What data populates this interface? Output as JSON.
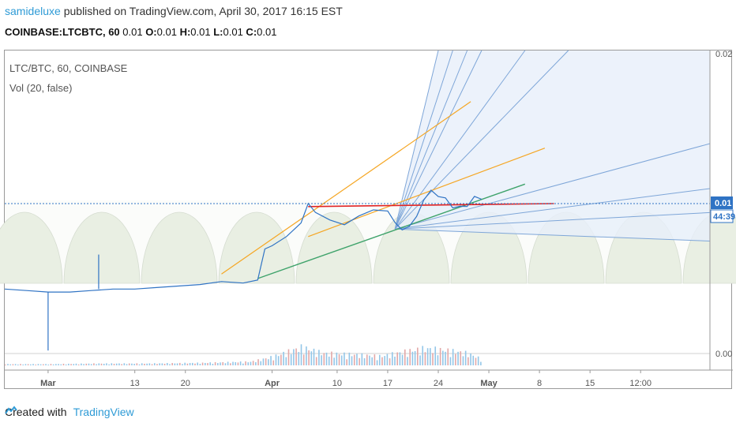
{
  "header": {
    "user": "samideluxe",
    "published": " published on TradingView.com, April 30, 2017 16:15 EST"
  },
  "symbol_bar": {
    "symbol": "COINBASE:LTCBTC, 60",
    "value": " 0.01",
    "o_label": " O:",
    "o_value": "0.01",
    "h_label": " H:",
    "h_value": "0.01",
    "l_label": " L:",
    "l_value": "0.01",
    "c_label": " C:",
    "c_value": "0.01"
  },
  "overlay": {
    "pair": "LTC/BTC, 60, COINBASE",
    "volume": "Vol (20, false)"
  },
  "footer": {
    "created_with": "Created with",
    "brand": "TradingView"
  },
  "colors": {
    "price_line": "#2f73c4",
    "trend_orange": "#f5a623",
    "trend_green": "#3fa36b",
    "level_red": "#e02424",
    "fan_lines": "#7ea6d8",
    "fan_fill": "#e7effa",
    "arcs_fill": "#e9efe3",
    "price_label_bg": "#2f73c4"
  },
  "chart_data": {
    "type": "line",
    "x_tick_labels": [
      "Mar",
      "13",
      "20",
      "Apr",
      "10",
      "17",
      "24",
      "May",
      "8",
      "15",
      "12:00"
    ],
    "y_tick_labels": [
      "0.02",
      "0.00"
    ],
    "current_price_label": "0.01",
    "countdown_label": "44:39",
    "series": [
      {
        "x": [
          "Feb 23",
          "Feb 26",
          "Mar 1",
          "Mar 4",
          "Mar 7",
          "Mar 10",
          "Mar 13",
          "Mar 16",
          "Mar 19",
          "Mar 22",
          "Mar 25",
          "Mar 28",
          "Mar 30",
          "Mar 31",
          "Apr 1",
          "Apr 3",
          "Apr 5",
          "Apr 6",
          "Apr 7",
          "Apr 9",
          "Apr 11",
          "Apr 13",
          "Apr 15",
          "Apr 17",
          "Apr 18",
          "Apr 19",
          "Apr 20",
          "Apr 21",
          "Apr 22",
          "Apr 23",
          "Apr 24",
          "Apr 25",
          "Apr 26",
          "Apr 27",
          "Apr 28",
          "Apr 29",
          "Apr 30"
        ],
        "values": [
          0.0043,
          0.0042,
          0.0041,
          0.0041,
          0.0042,
          0.0043,
          0.0043,
          0.0044,
          0.0045,
          0.0046,
          0.0048,
          0.0047,
          0.0049,
          0.0071,
          0.0074,
          0.0079,
          0.0086,
          0.0098,
          0.0093,
          0.009,
          0.0088,
          0.0093,
          0.0095,
          0.0093,
          0.0086,
          0.0083,
          0.0087,
          0.0093,
          0.0102,
          0.0107,
          0.0103,
          0.0104,
          0.0099,
          0.01,
          0.0098,
          0.0103,
          0.0101
        ]
      }
    ],
    "volume": {
      "x": [
        "Feb 23",
        "Mar 1",
        "Mar 8",
        "Mar 15",
        "Mar 22",
        "Mar 29",
        "Apr 1",
        "Apr 5",
        "Apr 8",
        "Apr 12",
        "Apr 16",
        "Apr 19",
        "Apr 22",
        "Apr 25",
        "Apr 28",
        "Apr 30"
      ],
      "values": [
        2,
        2,
        3,
        3,
        4,
        6,
        14,
        30,
        20,
        18,
        15,
        22,
        28,
        25,
        20,
        10
      ]
    }
  }
}
